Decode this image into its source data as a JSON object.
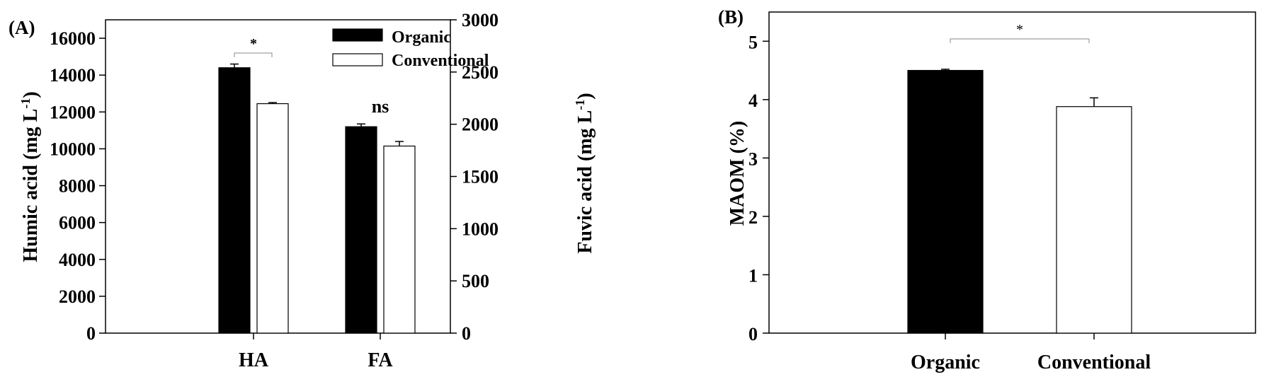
{
  "colors": {
    "organic": "#000000",
    "conventional": "#ffffff",
    "axis": "#000000",
    "bracket": "#888888"
  },
  "chart_data": [
    {
      "type": "bar",
      "panel_label": "(A)",
      "categories": [
        "HA",
        "FA"
      ],
      "y_left": {
        "label_main": "Humic acid (mg L",
        "label_sup": "-1",
        "label_end": ")",
        "ylim": [
          0,
          17000
        ],
        "ticks": [
          "0",
          "2000",
          "4000",
          "6000",
          "8000",
          "10000",
          "12000",
          "14000",
          "16000"
        ]
      },
      "y_right": {
        "label_main": "Fuvic acid (mg L",
        "label_sup": "-1",
        "label_end": ")",
        "ylim": [
          0,
          3000
        ],
        "ticks": [
          "0",
          "500",
          "1000",
          "1500",
          "2000",
          "2500",
          "3000"
        ]
      },
      "series": [
        {
          "name": "Organic",
          "color": "#000000",
          "values": [
            14400,
            11200
          ],
          "errors": [
            200,
            150
          ]
        },
        {
          "name": "Conventional",
          "color": "#ffffff",
          "values": [
            12450,
            10150
          ],
          "errors": [
            60,
            250
          ]
        }
      ],
      "annotations": [
        "*",
        "ns"
      ],
      "legend": "top-right"
    },
    {
      "type": "bar",
      "panel_label": "(B)",
      "categories": [
        "Organic",
        "Conventional"
      ],
      "ylabel": "MAOM (%)",
      "ylim": [
        0,
        5.5
      ],
      "ticks": [
        "0",
        "1",
        "2",
        "3",
        "4",
        "5"
      ],
      "values": [
        4.5,
        3.88
      ],
      "errors": [
        0.02,
        0.15
      ],
      "colors": [
        "#000000",
        "#ffffff"
      ],
      "annotations": [
        "*"
      ]
    }
  ]
}
